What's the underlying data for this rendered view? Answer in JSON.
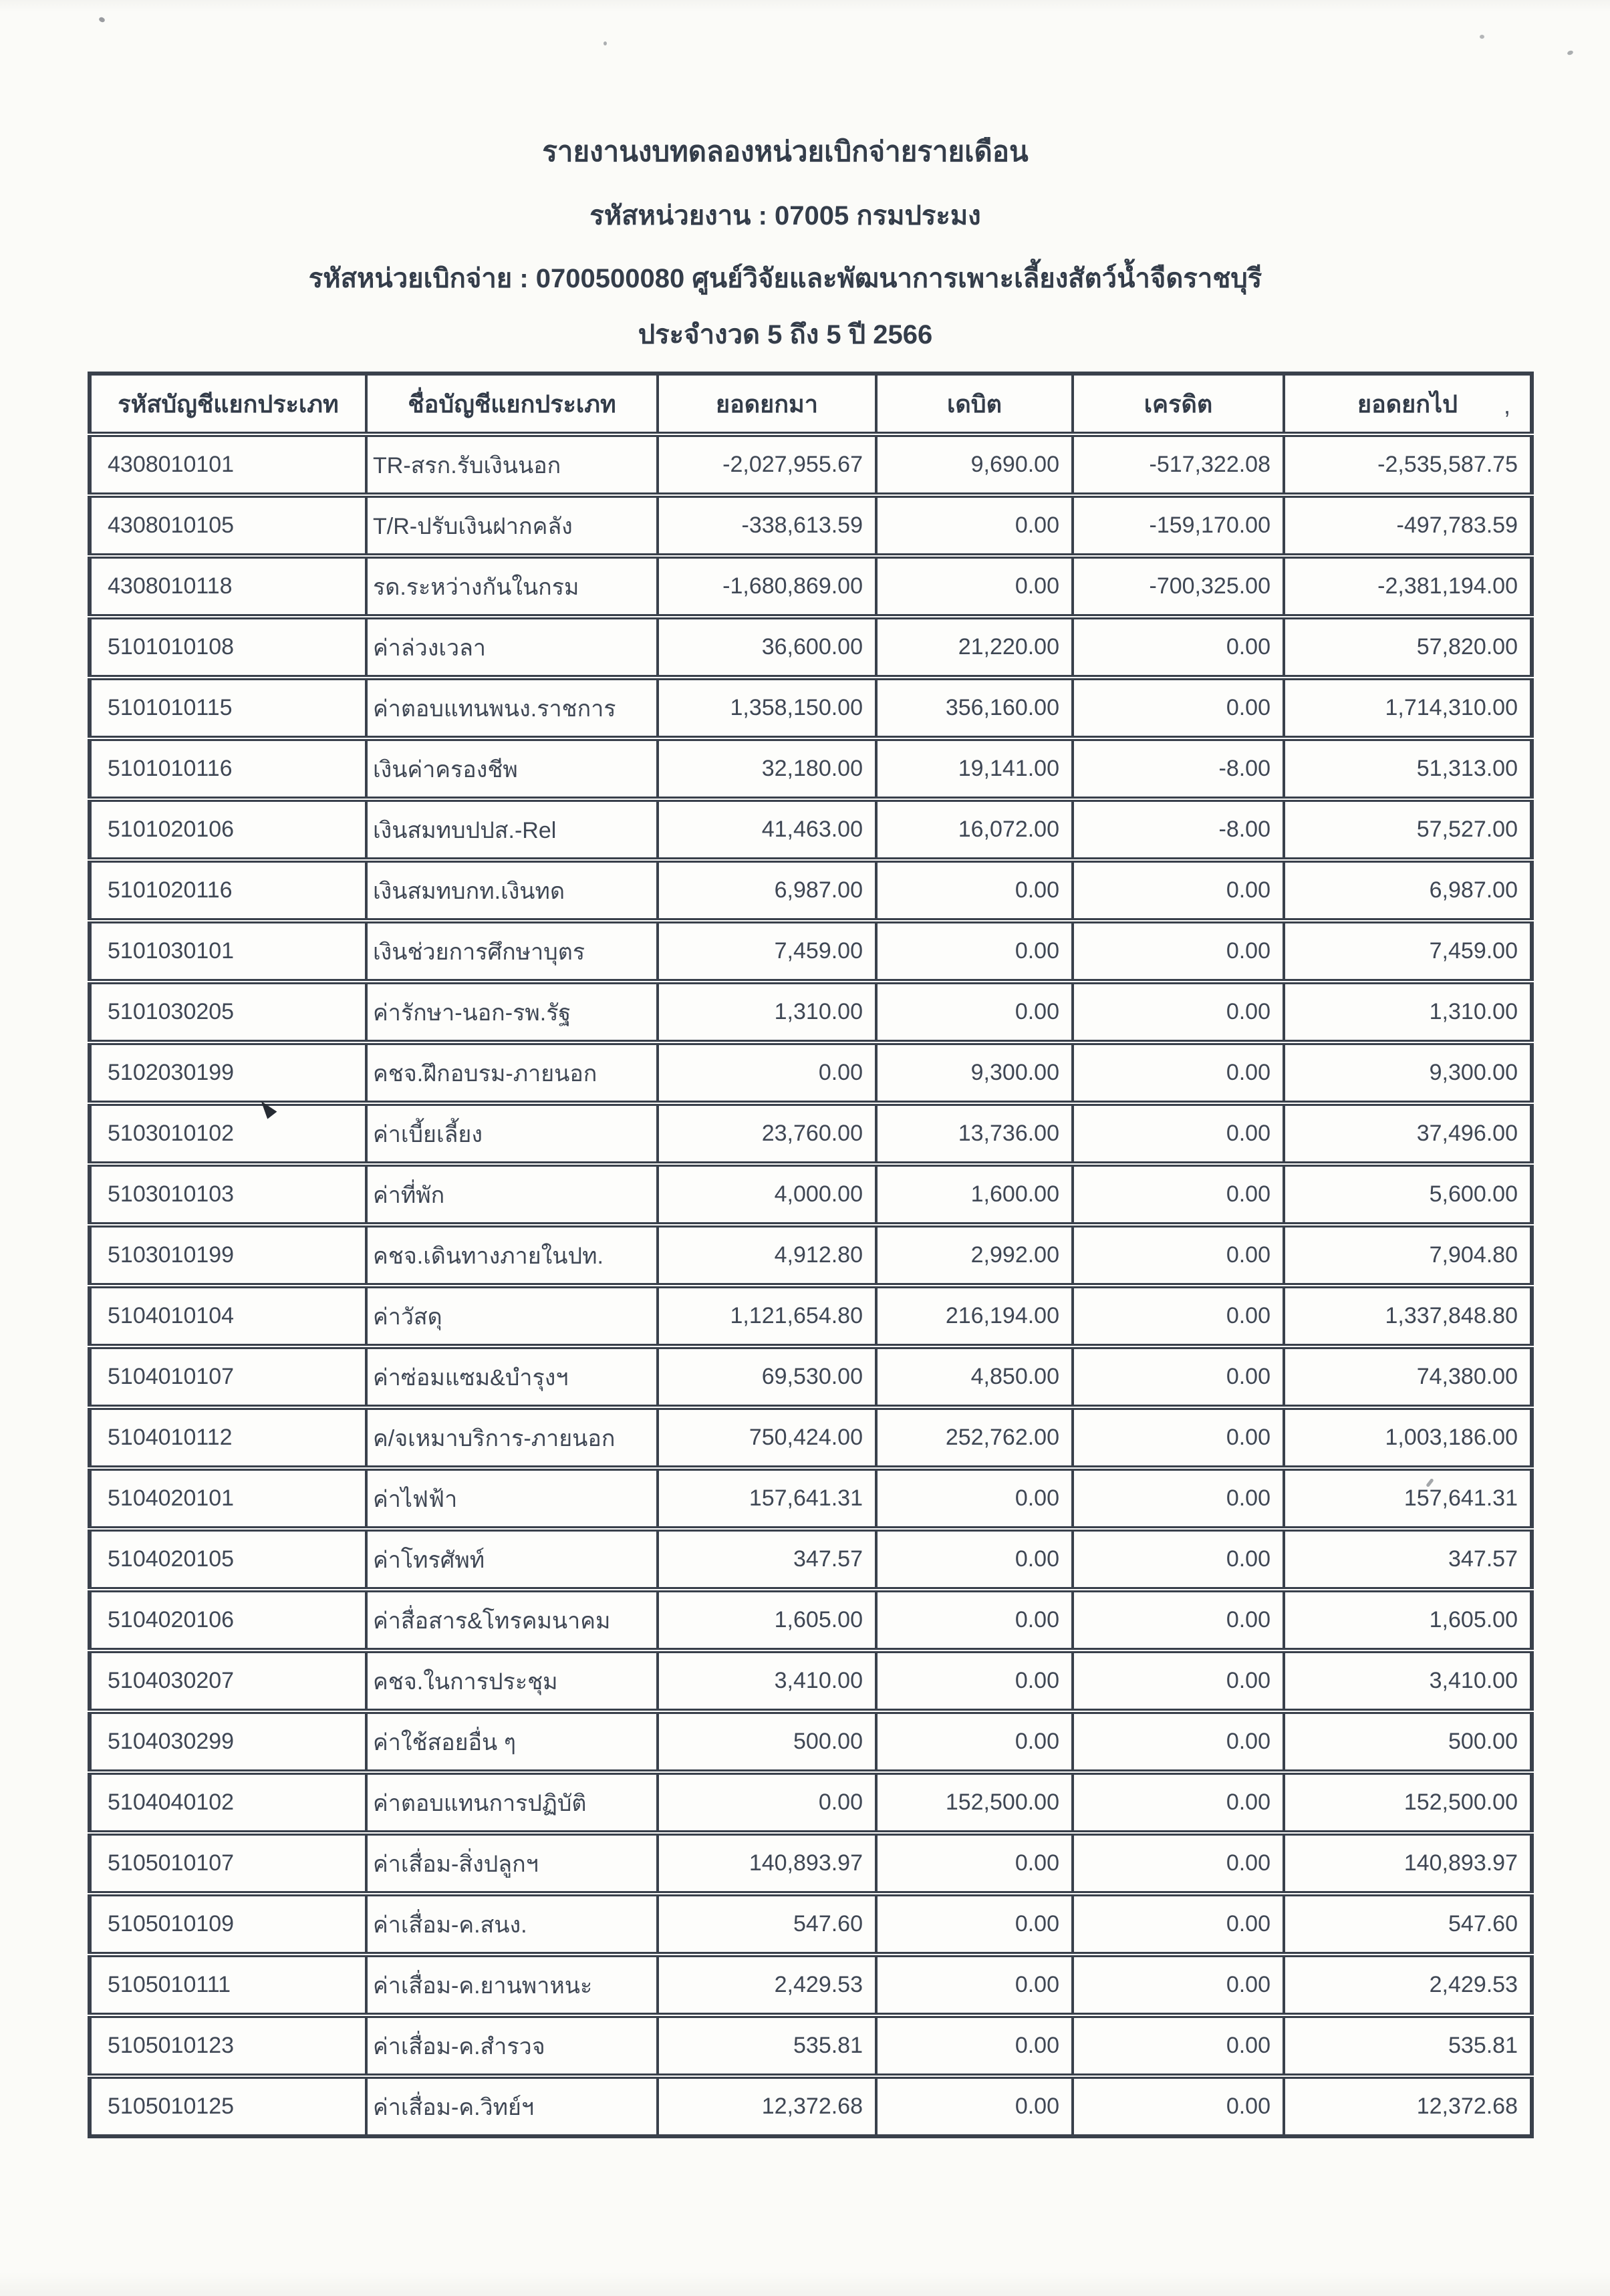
{
  "report": {
    "title": "รายงานงบทดลองหน่วยเบิกจ่ายรายเดือน",
    "agency_line": "รหัสหน่วยงาน : 07005 กรมประมง",
    "disbursement_unit_line": "รหัสหน่วยเบิกจ่าย : 0700500080 ศูนย์วิจัยและพัฒนาการเพาะเลี้ยงสัตว์น้ำจืดราชบุรี",
    "period_line": "ประจำงวด 5 ถึง 5 ปี 2566"
  },
  "table": {
    "columns": [
      "รหัสบัญชีแยกประเภท",
      "ชื่อบัญชีแยกประเภท",
      "ยอดยกมา",
      "เดบิต",
      "เครดิต",
      "ยอดยกไป"
    ],
    "rows": [
      [
        "4308010101",
        "TR-สรก.รับเงินนอก",
        "-2,027,955.67",
        "9,690.00",
        "-517,322.08",
        "-2,535,587.75"
      ],
      [
        "4308010105",
        "T/R-ปรับเงินฝากคลัง",
        "-338,613.59",
        "0.00",
        "-159,170.00",
        "-497,783.59"
      ],
      [
        "4308010118",
        "รด.ระหว่างกันในกรม",
        "-1,680,869.00",
        "0.00",
        "-700,325.00",
        "-2,381,194.00"
      ],
      [
        "5101010108",
        "ค่าล่วงเวลา",
        "36,600.00",
        "21,220.00",
        "0.00",
        "57,820.00"
      ],
      [
        "5101010115",
        "ค่าตอบแทนพนง.ราชการ",
        "1,358,150.00",
        "356,160.00",
        "0.00",
        "1,714,310.00"
      ],
      [
        "5101010116",
        "เงินค่าครองชีพ",
        "32,180.00",
        "19,141.00",
        "-8.00",
        "51,313.00"
      ],
      [
        "5101020106",
        "เงินสมทบปปส.-Rel",
        "41,463.00",
        "16,072.00",
        "-8.00",
        "57,527.00"
      ],
      [
        "5101020116",
        "เงินสมทบกท.เงินทด",
        "6,987.00",
        "0.00",
        "0.00",
        "6,987.00"
      ],
      [
        "5101030101",
        "เงินช่วยการศึกษาบุตร",
        "7,459.00",
        "0.00",
        "0.00",
        "7,459.00"
      ],
      [
        "5101030205",
        "ค่ารักษา-นอก-รพ.รัฐ",
        "1,310.00",
        "0.00",
        "0.00",
        "1,310.00"
      ],
      [
        "5102030199",
        "คชจ.ฝึกอบรม-ภายนอก",
        "0.00",
        "9,300.00",
        "0.00",
        "9,300.00"
      ],
      [
        "5103010102",
        "ค่าเบี้ยเลี้ยง",
        "23,760.00",
        "13,736.00",
        "0.00",
        "37,496.00"
      ],
      [
        "5103010103",
        "ค่าที่พัก",
        "4,000.00",
        "1,600.00",
        "0.00",
        "5,600.00"
      ],
      [
        "5103010199",
        "คชจ.เดินทางภายในปท.",
        "4,912.80",
        "2,992.00",
        "0.00",
        "7,904.80"
      ],
      [
        "5104010104",
        "ค่าวัสดุ",
        "1,121,654.80",
        "216,194.00",
        "0.00",
        "1,337,848.80"
      ],
      [
        "5104010107",
        "ค่าซ่อมแซม&บำรุงฯ",
        "69,530.00",
        "4,850.00",
        "0.00",
        "74,380.00"
      ],
      [
        "5104010112",
        "ค/จเหมาบริการ-ภายนอก",
        "750,424.00",
        "252,762.00",
        "0.00",
        "1,003,186.00"
      ],
      [
        "5104020101",
        "ค่าไฟฟ้า",
        "157,641.31",
        "0.00",
        "0.00",
        "157,641.31"
      ],
      [
        "5104020105",
        "ค่าโทรศัพท์",
        "347.57",
        "0.00",
        "0.00",
        "347.57"
      ],
      [
        "5104020106",
        "ค่าสื่อสาร&โทรคมนาคม",
        "1,605.00",
        "0.00",
        "0.00",
        "1,605.00"
      ],
      [
        "5104030207",
        "คชจ.ในการประชุม",
        "3,410.00",
        "0.00",
        "0.00",
        "3,410.00"
      ],
      [
        "5104030299",
        "ค่าใช้สอยอื่น ๆ",
        "500.00",
        "0.00",
        "0.00",
        "500.00"
      ],
      [
        "5104040102",
        "ค่าตอบแทนการปฏิบัติ",
        "0.00",
        "152,500.00",
        "0.00",
        "152,500.00"
      ],
      [
        "5105010107",
        "ค่าเสื่อม-สิ่งปลูกฯ",
        "140,893.97",
        "0.00",
        "0.00",
        "140,893.97"
      ],
      [
        "5105010109",
        "ค่าเสื่อม-ค.สนง.",
        "547.60",
        "0.00",
        "0.00",
        "547.60"
      ],
      [
        "5105010111",
        "ค่าเสื่อม-ค.ยานพาหนะ",
        "2,429.53",
        "0.00",
        "0.00",
        "2,429.53"
      ],
      [
        "5105010123",
        "ค่าเสื่อม-ค.สำรวจ",
        "535.81",
        "0.00",
        "0.00",
        "535.81"
      ],
      [
        "5105010125",
        "ค่าเสื่อม-ค.วิทย์ฯ",
        "12,372.68",
        "0.00",
        "0.00",
        "12,372.68"
      ]
    ],
    "cell_names": [
      "account-code",
      "account-name",
      "beginning-balance",
      "debit",
      "credit",
      "ending-balance"
    ]
  },
  "scan_artifacts": {
    "comma": ","
  },
  "colors": {
    "ink": "#3f4754",
    "heading_ink": "#333c49",
    "border": "#3a414c",
    "paper": "#fbfbf8"
  }
}
